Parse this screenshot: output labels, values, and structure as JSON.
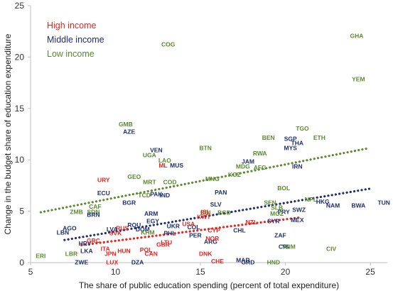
{
  "chart_data": {
    "type": "scatter",
    "xlabel": "The share of public education spending (percent of total expenditure)",
    "ylabel": "Change in the budget share of education expenditure",
    "xlim": [
      5,
      26
    ],
    "ylim": [
      0,
      25
    ],
    "xticks": [
      5,
      10,
      15,
      20,
      25
    ],
    "yticks": [
      0,
      5,
      10,
      15,
      20,
      25
    ],
    "grid": false,
    "legend_position": "top-left",
    "colors": {
      "high": "#e8251f",
      "middle": "#1f2f6e",
      "low": "#5a8a2e"
    },
    "legend": [
      {
        "group": "high",
        "label": "High income"
      },
      {
        "group": "middle",
        "label": "Middle income"
      },
      {
        "group": "low",
        "label": "Low income"
      }
    ],
    "trendlines": [
      {
        "group": "low",
        "x": [
          5.6,
          24.8
        ],
        "y": [
          4.9,
          11.1
        ]
      },
      {
        "group": "middle",
        "x": [
          7.0,
          25.0
        ],
        "y": [
          2.2,
          7.2
        ]
      },
      {
        "group": "high",
        "x": [
          8.0,
          20.9
        ],
        "y": [
          1.7,
          4.4
        ]
      }
    ],
    "points": [
      {
        "label": "GHA",
        "x": 24.2,
        "y": 22.0,
        "group": "low"
      },
      {
        "label": "COG",
        "x": 13.1,
        "y": 21.2,
        "group": "low"
      },
      {
        "label": "YEM",
        "x": 24.3,
        "y": 17.8,
        "group": "low"
      },
      {
        "label": "GMB",
        "x": 10.6,
        "y": 13.4,
        "group": "low"
      },
      {
        "label": "AZE",
        "x": 10.8,
        "y": 12.7,
        "group": "middle"
      },
      {
        "label": "TGO",
        "x": 21.0,
        "y": 13.0,
        "group": "low"
      },
      {
        "label": "BEN",
        "x": 19.0,
        "y": 12.1,
        "group": "low"
      },
      {
        "label": "SGP",
        "x": 20.3,
        "y": 12.0,
        "group": "middle"
      },
      {
        "label": "ETH",
        "x": 22.0,
        "y": 12.1,
        "group": "low"
      },
      {
        "label": "THA",
        "x": 20.7,
        "y": 11.6,
        "group": "middle"
      },
      {
        "label": "MYS",
        "x": 20.3,
        "y": 11.1,
        "group": "middle"
      },
      {
        "label": "VEN",
        "x": 12.4,
        "y": 10.9,
        "group": "middle"
      },
      {
        "label": "BTN",
        "x": 15.3,
        "y": 11.1,
        "group": "low"
      },
      {
        "label": "UGA",
        "x": 12.0,
        "y": 10.4,
        "group": "low"
      },
      {
        "label": "RWA",
        "x": 18.5,
        "y": 10.6,
        "group": "low"
      },
      {
        "label": "LAO",
        "x": 12.9,
        "y": 9.9,
        "group": "low"
      },
      {
        "label": "ML",
        "x": 12.8,
        "y": 9.4,
        "group": "high"
      },
      {
        "label": "MUS",
        "x": 13.6,
        "y": 9.4,
        "group": "middle"
      },
      {
        "label": "JAM",
        "x": 17.8,
        "y": 9.8,
        "group": "middle"
      },
      {
        "label": "MDG",
        "x": 17.5,
        "y": 9.3,
        "group": "low"
      },
      {
        "label": "AFG",
        "x": 18.5,
        "y": 9.2,
        "group": "low"
      },
      {
        "label": "IRN",
        "x": 20.7,
        "y": 9.3,
        "group": "middle"
      },
      {
        "label": "URY",
        "x": 9.3,
        "y": 8.0,
        "group": "high"
      },
      {
        "label": "GEO",
        "x": 11.1,
        "y": 8.3,
        "group": "low"
      },
      {
        "label": "MRT",
        "x": 12.0,
        "y": 7.8,
        "group": "low"
      },
      {
        "label": "COD",
        "x": 13.2,
        "y": 7.8,
        "group": "low"
      },
      {
        "label": "MNG",
        "x": 15.7,
        "y": 8.1,
        "group": "low"
      },
      {
        "label": "KGZ",
        "x": 17.0,
        "y": 8.5,
        "group": "low"
      },
      {
        "label": "BOL",
        "x": 19.9,
        "y": 7.2,
        "group": "low"
      },
      {
        "label": "ECU",
        "x": 9.3,
        "y": 6.7,
        "group": "middle"
      },
      {
        "label": "TCD",
        "x": 11.7,
        "y": 6.5,
        "group": "low"
      },
      {
        "label": "IND",
        "x": 12.9,
        "y": 6.5,
        "group": "middle"
      },
      {
        "label": "PAN",
        "x": 16.2,
        "y": 6.8,
        "group": "middle"
      },
      {
        "label": "CIV",
        "x": 22.7,
        "y": 1.3,
        "group": "low"
      },
      {
        "label": "ZMB",
        "x": 7.7,
        "y": 4.9,
        "group": "low"
      },
      {
        "label": "SDN",
        "x": 8.7,
        "y": 4.9,
        "group": "low"
      },
      {
        "label": "BRN",
        "x": 8.7,
        "y": 4.6,
        "group": "middle"
      },
      {
        "label": "BGR",
        "x": 10.8,
        "y": 5.8,
        "group": "middle"
      },
      {
        "label": "PAK",
        "x": 12.4,
        "y": 6.6,
        "group": "middle"
      },
      {
        "label": "SEN",
        "x": 19.1,
        "y": 5.8,
        "group": "low"
      },
      {
        "label": "NPL",
        "x": 21.5,
        "y": 6.1,
        "group": "low"
      },
      {
        "label": "HKG",
        "x": 22.2,
        "y": 5.9,
        "group": "middle"
      },
      {
        "label": "NAM",
        "x": 22.8,
        "y": 5.5,
        "group": "middle"
      },
      {
        "label": "BWA",
        "x": 24.3,
        "y": 5.5,
        "group": "middle"
      },
      {
        "label": "TUN",
        "x": 25.8,
        "y": 5.8,
        "group": "middle"
      },
      {
        "label": "SLB",
        "x": 19.5,
        "y": 5.3,
        "group": "low"
      },
      {
        "label": "BDI",
        "x": 15.3,
        "y": 4.8,
        "group": "low"
      },
      {
        "label": "BGD",
        "x": 16.4,
        "y": 4.8,
        "group": "low"
      },
      {
        "label": "PRY",
        "x": 19.9,
        "y": 4.9,
        "group": "middle"
      },
      {
        "label": "SWZ",
        "x": 20.8,
        "y": 5.1,
        "group": "middle"
      },
      {
        "label": "AGO",
        "x": 7.3,
        "y": 3.3,
        "group": "middle"
      },
      {
        "label": "LBN",
        "x": 6.9,
        "y": 2.9,
        "group": "middle"
      },
      {
        "label": "HRV",
        "x": 8.2,
        "y": 1.8,
        "group": "middle"
      },
      {
        "label": "LKA",
        "x": 8.3,
        "y": 1.1,
        "group": "middle"
      },
      {
        "label": "LBR",
        "x": 7.4,
        "y": 0.8,
        "group": "low"
      },
      {
        "label": "ERI",
        "x": 5.6,
        "y": 0.6,
        "group": "low"
      },
      {
        "label": "ZWE",
        "x": 8.0,
        "y": 0.0,
        "group": "middle"
      },
      {
        "label": "LUX",
        "x": 9.8,
        "y": 0.0,
        "group": "high"
      },
      {
        "label": "DZA",
        "x": 11.3,
        "y": 0.0,
        "group": "middle"
      },
      {
        "label": "CHE",
        "x": 16.0,
        "y": 0.1,
        "group": "high"
      },
      {
        "label": "MAR",
        "x": 17.5,
        "y": 0.2,
        "group": "middle"
      },
      {
        "label": "GRD",
        "x": 17.8,
        "y": 0.0,
        "group": "middle"
      },
      {
        "label": "HND",
        "x": 19.3,
        "y": 0.0,
        "group": "low"
      },
      {
        "label": "DNK",
        "x": 15.3,
        "y": 0.8,
        "group": "high"
      },
      {
        "label": "CRI",
        "x": 19.9,
        "y": 1.5,
        "group": "middle"
      },
      {
        "label": "ZAF",
        "x": 19.7,
        "y": 2.6,
        "group": "middle"
      },
      {
        "label": "VNM",
        "x": 20.2,
        "y": 1.5,
        "group": "low"
      },
      {
        "label": "ARG",
        "x": 15.6,
        "y": 2.0,
        "group": "middle"
      },
      {
        "label": "CHL",
        "x": 17.3,
        "y": 3.1,
        "group": "middle"
      },
      {
        "label": "NZL",
        "x": 18.0,
        "y": 3.9,
        "group": "high"
      },
      {
        "label": "SYR",
        "x": 19.3,
        "y": 4.0,
        "group": "middle"
      },
      {
        "label": "MOZ",
        "x": 19.5,
        "y": 4.7,
        "group": "low"
      },
      {
        "label": "MEX",
        "x": 20.7,
        "y": 4.1,
        "group": "middle"
      },
      {
        "label": "KWT",
        "x": 15.2,
        "y": 4.4,
        "group": "high"
      },
      {
        "label": "ISL",
        "x": 15.3,
        "y": 4.9,
        "group": "high"
      },
      {
        "label": "SLV",
        "x": 15.9,
        "y": 5.6,
        "group": "middle"
      },
      {
        "label": "UKR",
        "x": 13.4,
        "y": 3.5,
        "group": "middle"
      },
      {
        "label": "COL",
        "x": 14.6,
        "y": 3.4,
        "group": "middle"
      },
      {
        "label": "USA",
        "x": 14.3,
        "y": 3.7,
        "group": "high"
      },
      {
        "label": "CYP",
        "x": 15.8,
        "y": 3.1,
        "group": "high"
      },
      {
        "label": "NOR",
        "x": 15.7,
        "y": 2.3,
        "group": "high"
      },
      {
        "label": "PER",
        "x": 14.7,
        "y": 2.6,
        "group": "middle"
      },
      {
        "label": "PHL",
        "x": 13.2,
        "y": 2.8,
        "group": "middle"
      },
      {
        "label": "GRC",
        "x": 8.7,
        "y": 2.1,
        "group": "high"
      },
      {
        "label": "DOM",
        "x": 11.6,
        "y": 3.2,
        "group": "middle"
      },
      {
        "label": "KHM",
        "x": 11.9,
        "y": 2.9,
        "group": "low"
      },
      {
        "label": "ROU",
        "x": 11.1,
        "y": 3.6,
        "group": "middle"
      },
      {
        "label": "RUS",
        "x": 10.4,
        "y": 3.3,
        "group": "high"
      },
      {
        "label": "LVA",
        "x": 9.8,
        "y": 3.2,
        "group": "middle"
      },
      {
        "label": "SVK",
        "x": 10.0,
        "y": 2.8,
        "group": "high"
      },
      {
        "label": "GBR",
        "x": 12.8,
        "y": 1.7,
        "group": "high"
      },
      {
        "label": "LTU",
        "x": 13.0,
        "y": 1.9,
        "group": "high"
      },
      {
        "label": "POL",
        "x": 11.8,
        "y": 1.2,
        "group": "high"
      },
      {
        "label": "CAN",
        "x": 12.1,
        "y": 0.8,
        "group": "high"
      },
      {
        "label": "JPN",
        "x": 9.7,
        "y": 0.8,
        "group": "high"
      },
      {
        "label": "HUN",
        "x": 10.5,
        "y": 1.1,
        "group": "high"
      },
      {
        "label": "ITA",
        "x": 9.4,
        "y": 1.3,
        "group": "high"
      },
      {
        "label": "ARM",
        "x": 12.1,
        "y": 4.7,
        "group": "middle"
      },
      {
        "label": "EGY",
        "x": 12.2,
        "y": 4.0,
        "group": "middle"
      },
      {
        "label": "CAF",
        "x": 8.8,
        "y": 5.4,
        "group": "low"
      }
    ]
  }
}
